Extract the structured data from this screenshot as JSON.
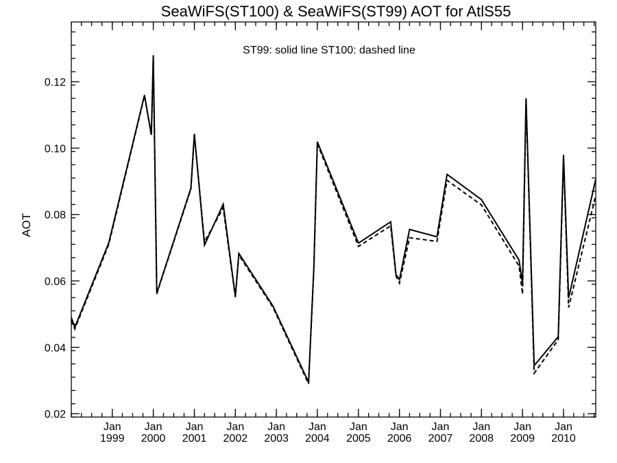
{
  "chart_data": {
    "type": "line",
    "title": "SeaWiFS(ST100) & SeaWiFS(ST99)  AOT for AtlS55",
    "annotation": "ST99: solid line   ST100: dashed line",
    "ylabel": "AOT",
    "xlabel": "",
    "xlim": [
      "1998-01-01",
      "2010-10-15"
    ],
    "ylim": [
      0.019,
      0.138
    ],
    "yticks": [
      0.02,
      0.04,
      0.06,
      0.08,
      0.1,
      0.12
    ],
    "ytick_labels": [
      "0.02",
      "0.04",
      "0.06",
      "0.08",
      "0.10",
      "0.12"
    ],
    "xticks": [
      {
        "date": "1999-01-01",
        "month": "Jan",
        "year": "1999"
      },
      {
        "date": "2000-01-01",
        "month": "Jan",
        "year": "2000"
      },
      {
        "date": "2001-01-01",
        "month": "Jan",
        "year": "2001"
      },
      {
        "date": "2002-01-01",
        "month": "Jan",
        "year": "2002"
      },
      {
        "date": "2003-01-01",
        "month": "Jan",
        "year": "2003"
      },
      {
        "date": "2004-01-01",
        "month": "Jan",
        "year": "2004"
      },
      {
        "date": "2005-01-01",
        "month": "Jan",
        "year": "2005"
      },
      {
        "date": "2006-01-01",
        "month": "Jan",
        "year": "2006"
      },
      {
        "date": "2007-01-01",
        "month": "Jan",
        "year": "2007"
      },
      {
        "date": "2008-01-01",
        "month": "Jan",
        "year": "2008"
      },
      {
        "date": "2009-01-01",
        "month": "Jan",
        "year": "2009"
      },
      {
        "date": "2010-01-01",
        "month": "Jan",
        "year": "2010"
      }
    ],
    "grid": false,
    "series": [
      {
        "name": "ST99",
        "style": "solid",
        "color": "#000000",
        "points": [
          [
            "1998-01-01",
            0.049
          ],
          [
            "1998-02-01",
            0.046
          ],
          [
            "1998-12-01",
            0.0715
          ],
          [
            "1999-10-15",
            0.116
          ],
          [
            "1999-12-15",
            0.104
          ],
          [
            "2000-01-01",
            0.128
          ],
          [
            "2000-02-01",
            0.0563
          ],
          [
            "2000-12-01",
            0.088
          ],
          [
            "2001-01-01",
            0.1043
          ],
          [
            "2001-04-01",
            0.0708
          ],
          [
            "2001-09-15",
            0.0831
          ],
          [
            "2002-01-01",
            0.0553
          ],
          [
            "2002-02-01",
            0.0683
          ],
          [
            "2002-12-01",
            0.0525
          ],
          [
            "2003-10-15",
            0.0295
          ],
          [
            "2003-12-01",
            0.064
          ],
          [
            "2004-01-01",
            0.1019
          ],
          [
            "2005-01-01",
            0.0714
          ],
          [
            "2005-10-15",
            0.0778
          ],
          [
            "2005-12-01",
            0.0619
          ],
          [
            "2006-01-01",
            0.0604
          ],
          [
            "2006-04-01",
            0.0755
          ],
          [
            "2006-12-01",
            0.0733
          ],
          [
            "2007-03-01",
            0.0921
          ],
          [
            "2008-01-01",
            0.0845
          ],
          [
            "2008-12-01",
            0.0663
          ],
          [
            "2009-01-01",
            0.0592
          ],
          [
            "2009-02-01",
            0.115
          ],
          [
            "2009-04-15",
            0.0345
          ],
          [
            "2009-11-15",
            0.0432
          ],
          [
            "2010-01-01",
            0.098
          ],
          [
            "2010-02-15",
            0.0548
          ],
          [
            "2010-10-15",
            0.0906
          ]
        ]
      },
      {
        "name": "ST100",
        "style": "dashed",
        "color": "#000000",
        "points": [
          [
            "1998-01-01",
            0.048
          ],
          [
            "1998-02-01",
            0.0455
          ],
          [
            "1998-12-01",
            0.071
          ],
          [
            "1999-10-15",
            0.1158
          ],
          [
            "1999-12-15",
            0.1037
          ],
          [
            "2000-01-01",
            0.1276
          ],
          [
            "2000-02-01",
            0.0561
          ],
          [
            "2000-12-01",
            0.0877
          ],
          [
            "2001-01-01",
            0.104
          ],
          [
            "2001-04-01",
            0.0718
          ],
          [
            "2001-09-15",
            0.082
          ],
          [
            "2002-01-01",
            0.0551
          ],
          [
            "2002-02-01",
            0.0678
          ],
          [
            "2002-12-01",
            0.0521
          ],
          [
            "2003-10-15",
            0.029
          ],
          [
            "2003-12-01",
            0.0636
          ],
          [
            "2004-01-01",
            0.1013
          ],
          [
            "2005-01-01",
            0.0704
          ],
          [
            "2005-10-15",
            0.0766
          ],
          [
            "2005-12-01",
            0.0615
          ],
          [
            "2006-01-01",
            0.0593
          ],
          [
            "2006-04-01",
            0.073
          ],
          [
            "2006-12-01",
            0.0719
          ],
          [
            "2007-03-01",
            0.0903
          ],
          [
            "2008-01-01",
            0.0829
          ],
          [
            "2008-12-01",
            0.0645
          ],
          [
            "2009-01-01",
            0.056
          ],
          [
            "2009-02-01",
            0.1145
          ],
          [
            "2009-04-15",
            0.0322
          ],
          [
            "2009-11-15",
            0.0423
          ],
          [
            "2010-01-01",
            0.0968
          ],
          [
            "2010-02-15",
            0.052
          ],
          [
            "2010-10-15",
            0.0858
          ]
        ]
      }
    ]
  }
}
